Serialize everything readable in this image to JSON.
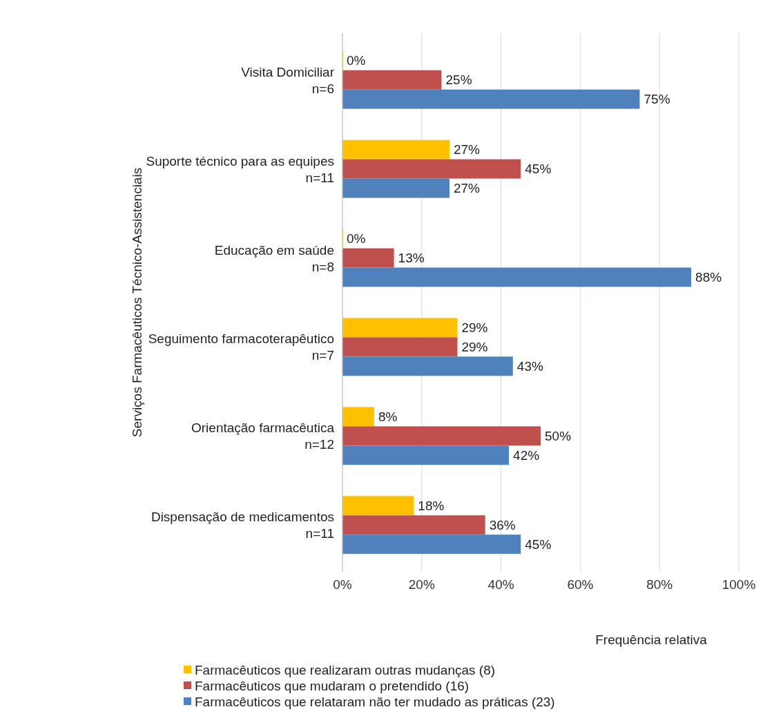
{
  "chart_data": {
    "type": "bar",
    "orientation": "horizontal",
    "ylabel": "Serviços Farmacêuticos Técnico-Assistenciais",
    "xlabel": "Frequência relativa",
    "categories": [
      "Visita Domiciliar\nn=6",
      "Suporte técnico para as equipes\nn=11",
      "Educação em saúde\nn=8",
      "Seguimento farmacoterapêutico\nn=7",
      "Orientação farmacêutica\nn=12",
      "Dispensação de medicamentos\nn=11"
    ],
    "series": [
      {
        "name": "Farmacêuticos que realizaram outras mudanças (8)",
        "color": "#ffc000",
        "values": [
          0,
          27,
          0,
          29,
          8,
          18
        ],
        "value_labels": [
          "0%",
          "27%",
          "0%",
          "29%",
          "8%",
          "18%"
        ]
      },
      {
        "name": "Farmacêuticos que mudaram o pretendido (16)",
        "color": "#c0504d",
        "values": [
          25,
          45,
          13,
          29,
          50,
          36
        ],
        "value_labels": [
          "25%",
          "45%",
          "13%",
          "29%",
          "50%",
          "36%"
        ]
      },
      {
        "name": "Farmacêuticos que relataram não ter mudado as práticas (23)",
        "color": "#4f81bd",
        "values": [
          75,
          27,
          88,
          43,
          42,
          45
        ],
        "value_labels": [
          "75%",
          "27%",
          "88%",
          "43%",
          "42%",
          "45%"
        ]
      }
    ],
    "xlim": [
      0,
      100
    ],
    "xticks": [
      {
        "value": 0,
        "label": "0%"
      },
      {
        "value": 20,
        "label": "20%"
      },
      {
        "value": 40,
        "label": "40%"
      },
      {
        "value": 60,
        "label": "60%"
      },
      {
        "value": 80,
        "label": "80%"
      },
      {
        "value": 100,
        "label": "100%"
      }
    ],
    "grid": "x",
    "legend": "bottom"
  }
}
